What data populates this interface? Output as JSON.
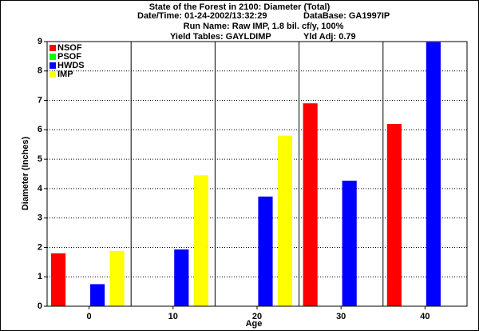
{
  "chart_data": {
    "type": "bar",
    "title": "State of the Forest in 2100: Diameter (Total)",
    "subtitle": [
      "Date/Time: 01-24-2002/13:32:29",
      "DataBase: GA1997IP",
      "Run Name: Raw IMP, 1.8 bil. cf/y, 100%",
      "Yield Tables: GAYLDIMP",
      "Yld Adj: 0.79"
    ],
    "x_label": "Age",
    "y_label": "Diameter (Inches)",
    "categories": [
      "0",
      "10",
      "20",
      "30",
      "40"
    ],
    "series": [
      {
        "name": "NSOF",
        "color": "#ff0000",
        "values": [
          1.8,
          0,
          0,
          6.9,
          6.2
        ]
      },
      {
        "name": "PSOF",
        "color": "#00ff00",
        "values": [
          0,
          0,
          0,
          0,
          0
        ]
      },
      {
        "name": "HWDS",
        "color": "#0000ff",
        "values": [
          0.75,
          1.93,
          3.73,
          4.27,
          8.98
        ]
      },
      {
        "name": "IMP",
        "color": "#ffff00",
        "values": [
          1.88,
          4.45,
          5.8,
          0,
          0
        ]
      }
    ],
    "ylim": [
      0,
      9
    ],
    "yticks": [
      0,
      1,
      2,
      3,
      4,
      5,
      6,
      7,
      8,
      9
    ],
    "grid": true,
    "legend": "top-left"
  }
}
